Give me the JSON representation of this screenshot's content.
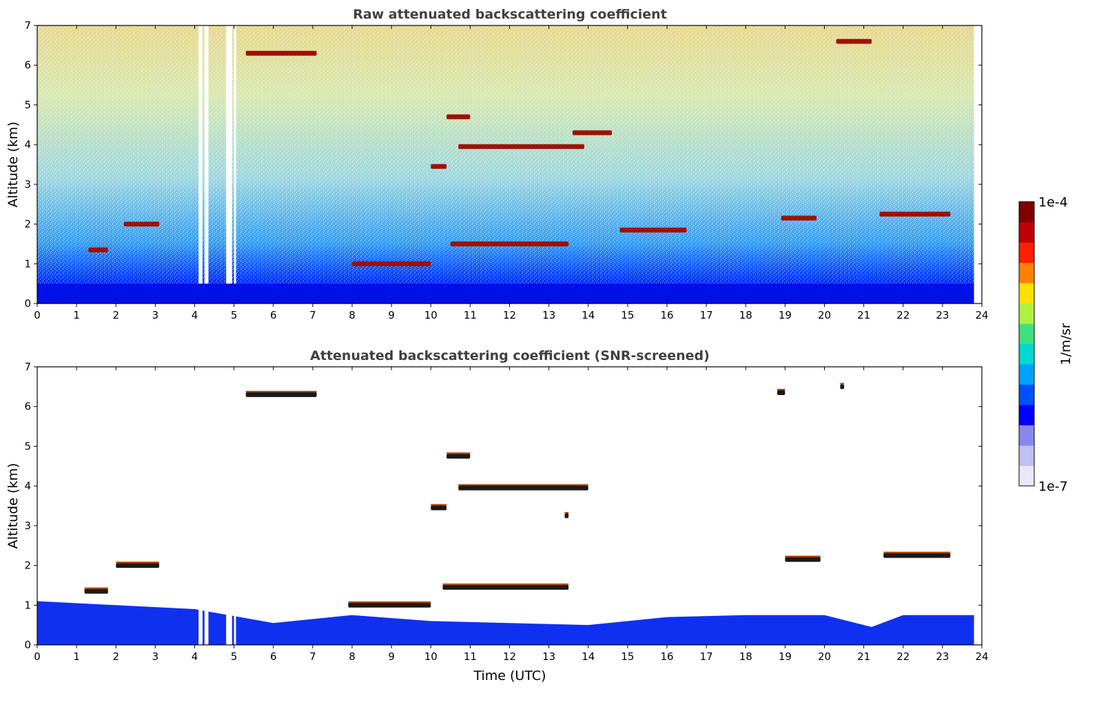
{
  "chart_data": [
    {
      "type": "heatmap",
      "title": "Raw attenuated backscattering coefficient",
      "xlabel": "",
      "ylabel": "Altitude (km)",
      "xlim": [
        0,
        24
      ],
      "ylim": [
        0,
        7
      ],
      "xticks": [
        "0",
        "1",
        "2",
        "3",
        "4",
        "5",
        "6",
        "7",
        "8",
        "9",
        "10",
        "11",
        "12",
        "13",
        "14",
        "15",
        "16",
        "17",
        "18",
        "19",
        "20",
        "21",
        "22",
        "23",
        "24"
      ],
      "yticks": [
        "0",
        "1",
        "2",
        "3",
        "4",
        "5",
        "6",
        "7"
      ],
      "gaps_utc": [
        [
          4.1,
          4.2
        ],
        [
          4.25,
          4.35
        ],
        [
          4.8,
          4.95
        ],
        [
          5.0,
          5.05
        ]
      ],
      "features": [
        {
          "kind": "boundary_layer",
          "x": [
            0,
            23.8
          ],
          "top_km": 0.5
        },
        {
          "kind": "layer",
          "x": [
            1.3,
            1.8
          ],
          "alt_km": 1.35
        },
        {
          "kind": "layer",
          "x": [
            2.2,
            3.1
          ],
          "alt_km": 2.0
        },
        {
          "kind": "layer",
          "x": [
            5.3,
            7.1
          ],
          "alt_km": 6.3
        },
        {
          "kind": "layer",
          "x": [
            10.4,
            11.0
          ],
          "alt_km": 4.7
        },
        {
          "kind": "layer",
          "x": [
            10.0,
            10.4
          ],
          "alt_km": 3.45
        },
        {
          "kind": "layer",
          "x": [
            10.7,
            13.9
          ],
          "alt_km": 3.95
        },
        {
          "kind": "layer",
          "x": [
            13.6,
            14.6
          ],
          "alt_km": 4.3
        },
        {
          "kind": "layer",
          "x": [
            8.0,
            10.0
          ],
          "alt_km": 1.0
        },
        {
          "kind": "layer",
          "x": [
            10.5,
            13.5
          ],
          "alt_km": 1.5
        },
        {
          "kind": "layer",
          "x": [
            14.8,
            16.5
          ],
          "alt_km": 1.85
        },
        {
          "kind": "layer",
          "x": [
            18.9,
            19.8
          ],
          "alt_km": 2.15
        },
        {
          "kind": "layer",
          "x": [
            21.4,
            23.2
          ],
          "alt_km": 2.25
        },
        {
          "kind": "layer",
          "x": [
            20.3,
            21.2
          ],
          "alt_km": 6.6
        }
      ]
    },
    {
      "type": "heatmap",
      "title": "Attenuated backscattering coefficient (SNR-screened)",
      "xlabel": "Time (UTC)",
      "ylabel": "Altitude (km)",
      "xlim": [
        0,
        24
      ],
      "ylim": [
        0,
        7
      ],
      "xticks": [
        "0",
        "1",
        "2",
        "3",
        "4",
        "5",
        "6",
        "7",
        "8",
        "9",
        "10",
        "11",
        "12",
        "13",
        "14",
        "15",
        "16",
        "17",
        "18",
        "19",
        "20",
        "21",
        "22",
        "23",
        "24"
      ],
      "yticks": [
        "0",
        "1",
        "2",
        "3",
        "4",
        "5",
        "6",
        "7"
      ],
      "boundary_layer_top_km": [
        {
          "x": 0,
          "y": 1.1
        },
        {
          "x": 2,
          "y": 1.0
        },
        {
          "x": 4,
          "y": 0.9
        },
        {
          "x": 6,
          "y": 0.55
        },
        {
          "x": 8,
          "y": 0.75
        },
        {
          "x": 10,
          "y": 0.6
        },
        {
          "x": 12,
          "y": 0.55
        },
        {
          "x": 14,
          "y": 0.5
        },
        {
          "x": 16,
          "y": 0.7
        },
        {
          "x": 18,
          "y": 0.75
        },
        {
          "x": 20,
          "y": 0.75
        },
        {
          "x": 21.2,
          "y": 0.45
        },
        {
          "x": 22,
          "y": 0.75
        },
        {
          "x": 23.8,
          "y": 0.75
        }
      ],
      "features": [
        {
          "kind": "layer",
          "x": [
            1.2,
            1.8
          ],
          "alt_km": 1.35
        },
        {
          "kind": "layer",
          "x": [
            2.0,
            3.1
          ],
          "alt_km": 2.0
        },
        {
          "kind": "layer",
          "x": [
            5.3,
            7.1
          ],
          "alt_km": 6.3
        },
        {
          "kind": "layer",
          "x": [
            10.4,
            11.0
          ],
          "alt_km": 4.75
        },
        {
          "kind": "layer",
          "x": [
            10.0,
            10.4
          ],
          "alt_km": 3.45
        },
        {
          "kind": "layer",
          "x": [
            10.7,
            14.0
          ],
          "alt_km": 3.95
        },
        {
          "kind": "layer",
          "x": [
            7.9,
            10.0
          ],
          "alt_km": 1.0
        },
        {
          "kind": "layer",
          "x": [
            10.3,
            13.5
          ],
          "alt_km": 1.45
        },
        {
          "kind": "layer",
          "x": [
            19.0,
            19.9
          ],
          "alt_km": 2.15
        },
        {
          "kind": "layer",
          "x": [
            21.5,
            23.2
          ],
          "alt_km": 2.25
        },
        {
          "kind": "layer",
          "x": [
            18.8,
            19.0
          ],
          "alt_km": 6.35
        },
        {
          "kind": "layer",
          "x": [
            20.4,
            20.5
          ],
          "alt_km": 6.5
        },
        {
          "kind": "layer",
          "x": [
            13.4,
            13.5
          ],
          "alt_km": 3.25
        }
      ]
    }
  ],
  "colorbar": {
    "label": "1/m/sr",
    "max_label": "1e-4",
    "min_label": "1e-7",
    "scale": "log",
    "colors": [
      "#e8e8f8",
      "#c0c0f0",
      "#8888ee",
      "#0000ff",
      "#0050ff",
      "#00a0ff",
      "#00d8d0",
      "#40e080",
      "#b0f040",
      "#ffe000",
      "#ff8000",
      "#ff2000",
      "#c00000",
      "#800000"
    ]
  }
}
